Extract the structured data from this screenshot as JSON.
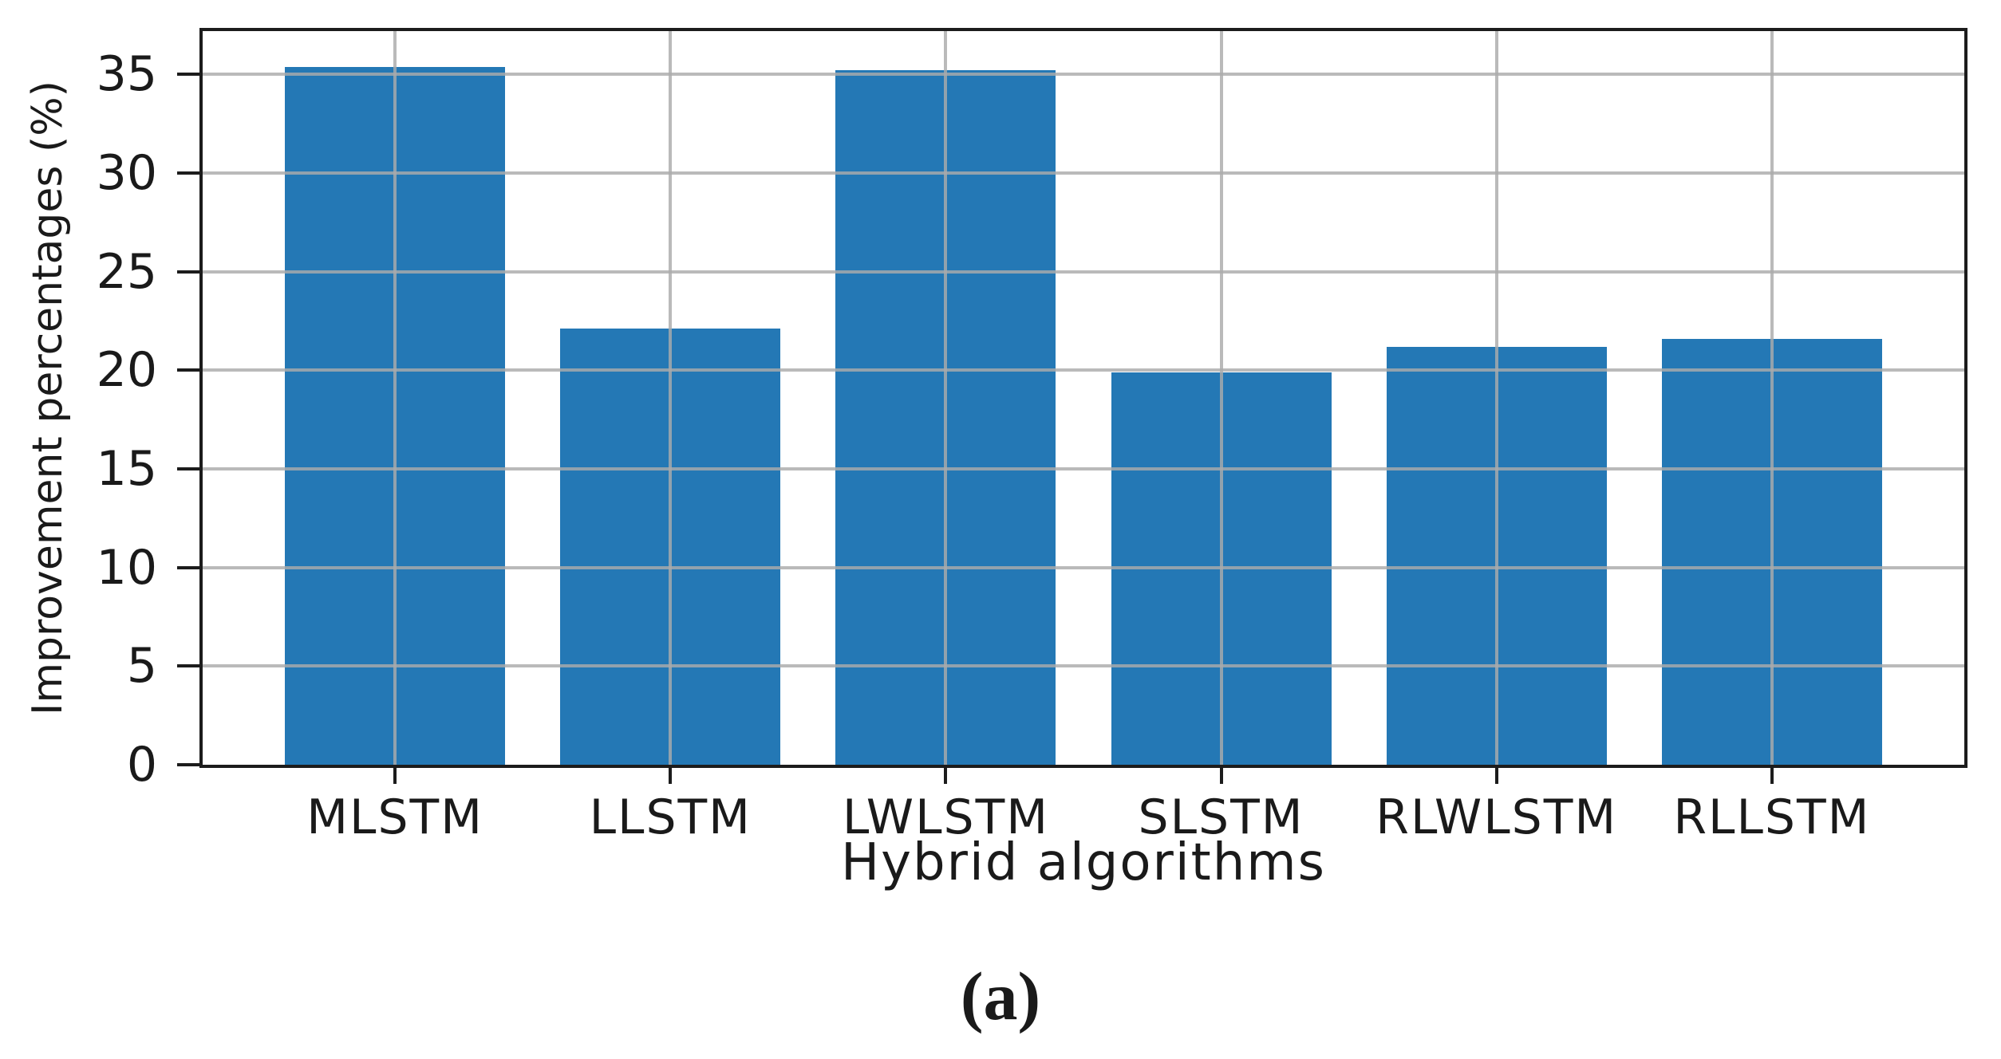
{
  "figure": {
    "caption": "(a)"
  },
  "chart_data": {
    "type": "bar",
    "categories": [
      "MLSTM",
      "LLSTM",
      "LWLSTM",
      "SLSTM",
      "RLWLSTM",
      "RLLSTM"
    ],
    "values": [
      35.4,
      22.1,
      35.2,
      19.9,
      21.2,
      21.6
    ],
    "title": "",
    "xlabel": "Hybrid algorithms",
    "ylabel": "Improvement percentages (%)",
    "ylim": [
      0,
      37.2
    ],
    "yticks": [
      0,
      5,
      10,
      15,
      20,
      25,
      30,
      35
    ],
    "grid": true,
    "grid_on_top_of_bars": true,
    "legend": "none",
    "bar_color": "#2478b5",
    "grid_color": "#ababab",
    "axis_color": "#1c1c1c",
    "text_color": "#1a1a1a"
  }
}
